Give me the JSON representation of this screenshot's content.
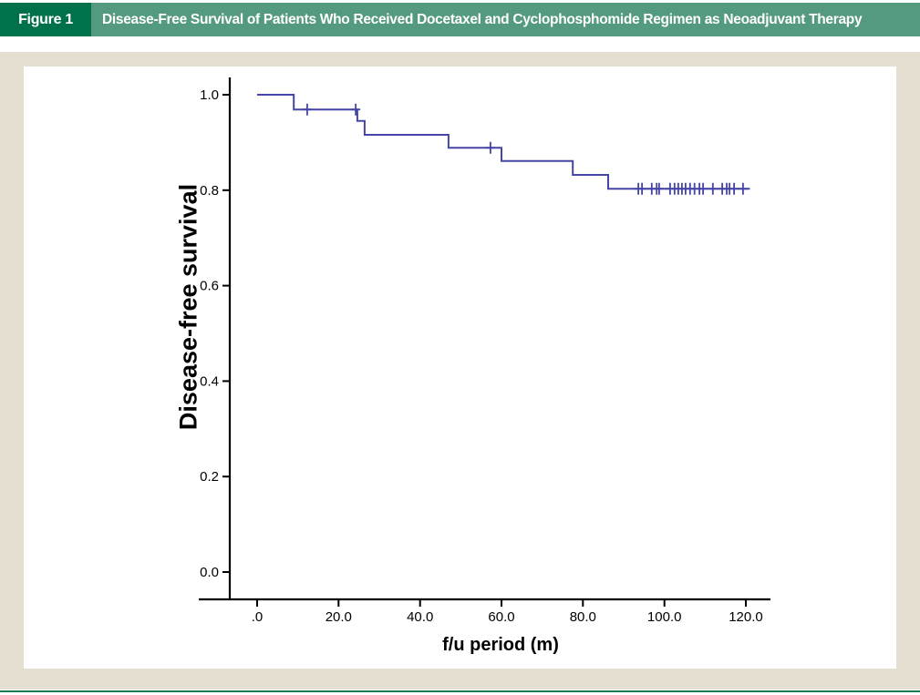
{
  "figure_header": {
    "label": "Figure 1",
    "title": "Disease-Free Survival of Patients Who Received Docetaxel and Cyclophosphomide Regimen as Neoadjuvant Therapy"
  },
  "colors": {
    "header_badge_green": "#00714A",
    "header_bar_green": "#549A7E",
    "panel_background": "#E5DFD1",
    "bottom_rule_green": "#157C52",
    "curve_blue": "#4545A8",
    "axis_black": "#000000"
  },
  "chart_data": {
    "type": "line",
    "subtype": "kaplan-meier-step-function",
    "title": "",
    "xlabel": "f/u period (m)",
    "ylabel": "Disease-free survival",
    "x_ticks": [
      ".0",
      "20.0",
      "40.0",
      "60.0",
      "80.0",
      "100.0",
      "120.0"
    ],
    "x_tick_values": [
      0,
      20,
      40,
      60,
      80,
      100,
      120
    ],
    "y_ticks": [
      "1.0",
      "0.8",
      "0.6",
      "0.4",
      "0.2",
      "0.0"
    ],
    "y_tick_values": [
      1.0,
      0.8,
      0.6,
      0.4,
      0.2,
      0.0
    ],
    "xlim": [
      0,
      125
    ],
    "ylim": [
      0,
      1.05
    ],
    "grid": false,
    "legend": false,
    "step_points": [
      [
        0,
        1.0
      ],
      [
        9,
        1.0
      ],
      [
        9,
        0.969
      ],
      [
        24.6,
        0.969
      ],
      [
        24.6,
        0.945
      ],
      [
        26.4,
        0.945
      ],
      [
        26.4,
        0.916
      ],
      [
        47,
        0.916
      ],
      [
        47,
        0.889
      ],
      [
        60,
        0.889
      ],
      [
        60,
        0.861
      ],
      [
        77.5,
        0.861
      ],
      [
        77.5,
        0.832
      ],
      [
        86.2,
        0.832
      ],
      [
        86.2,
        0.803
      ],
      [
        121,
        0.803
      ]
    ],
    "censor_marks": [
      [
        12.3,
        0.969
      ],
      [
        24.2,
        0.969
      ],
      [
        57.3,
        0.889
      ],
      [
        93.6,
        0.803
      ],
      [
        94.5,
        0.803
      ],
      [
        96.9,
        0.803
      ],
      [
        98.1,
        0.803
      ],
      [
        98.7,
        0.803
      ],
      [
        101.4,
        0.803
      ],
      [
        102.5,
        0.803
      ],
      [
        103.4,
        0.803
      ],
      [
        104.3,
        0.803
      ],
      [
        105.2,
        0.803
      ],
      [
        106.3,
        0.803
      ],
      [
        107.4,
        0.803
      ],
      [
        108.6,
        0.803
      ],
      [
        109.5,
        0.803
      ],
      [
        111.9,
        0.803
      ],
      [
        114.2,
        0.803
      ],
      [
        115.3,
        0.803
      ],
      [
        116.0,
        0.803
      ],
      [
        117.1,
        0.803
      ],
      [
        119.3,
        0.803
      ]
    ]
  }
}
